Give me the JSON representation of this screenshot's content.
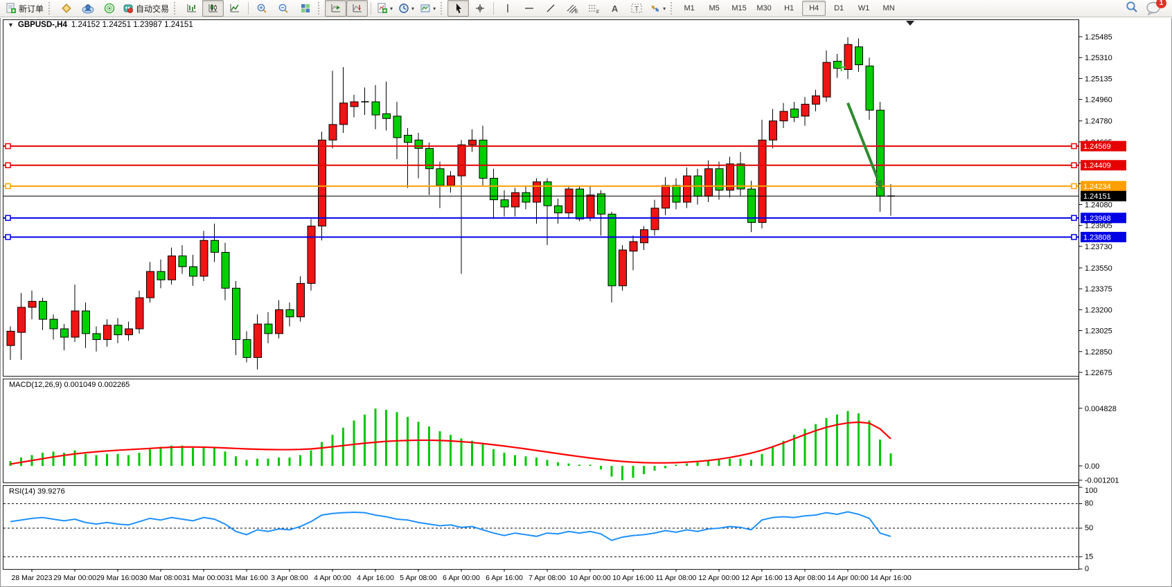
{
  "toolbar": {
    "new_order_label": "新订单",
    "auto_trading_label": "自动交易",
    "timeframes": [
      "M1",
      "M5",
      "M15",
      "M30",
      "H1",
      "H4",
      "D1",
      "W1",
      "MN"
    ],
    "active_timeframe": "H4",
    "notification_count": "1"
  },
  "chart_header": {
    "symbol_title": "GBPUSD-,H4",
    "ohlc_quote": "1.24152 1.24251 1.23987 1.24151",
    "collapse_glyph": "▼"
  },
  "indicators": {
    "macd_label": "MACD(12,26,9)",
    "macd_values": "0.001049 0.002265",
    "rsi_label": "RSI(14)",
    "rsi_value": "39.9276"
  },
  "chart_data": {
    "type": "candlestick",
    "symbol": "GBPUSD-",
    "timeframe": "H4",
    "current_price": 1.24151,
    "current_price_label": "1.24151",
    "price_axis_ticks": [
      "1.25485",
      "1.25310",
      "1.25135",
      "1.24960",
      "1.24780",
      "1.24605",
      "1.24430",
      "1.24255",
      "1.24080",
      "1.23905",
      "1.23730",
      "1.23550",
      "1.23375",
      "1.23200",
      "1.23025",
      "1.22850",
      "1.22675"
    ],
    "time_axis_labels": [
      "28 Mar 2023",
      "29 Mar 00:00",
      "29 Mar 16:00",
      "30 Mar 08:00",
      "31 Mar 00:00",
      "31 Mar 16:00",
      "3 Apr 08:00",
      "4 Apr 00:00",
      "4 Apr 16:00",
      "5 Apr 08:00",
      "6 Apr 00:00",
      "6 Apr 16:00",
      "7 Apr 08:00",
      "10 Apr 00:00",
      "10 Apr 16:00",
      "11 Apr 08:00",
      "12 Apr 00:00",
      "12 Apr 16:00",
      "13 Apr 08:00",
      "14 Apr 00:00",
      "14 Apr 16:00"
    ],
    "levels": [
      {
        "price": 1.24569,
        "label": "1.24569",
        "color": "#e60000",
        "role": "resistance"
      },
      {
        "price": 1.24409,
        "label": "1.24409",
        "color": "#e60000",
        "role": "resistance"
      },
      {
        "price": 1.24234,
        "label": "1.24234",
        "color": "#ffa000",
        "role": "pivot"
      },
      {
        "price": 1.23968,
        "label": "1.23968",
        "color": "#0000e6",
        "role": "support"
      },
      {
        "price": 1.23808,
        "label": "1.23808",
        "color": "#0000e6",
        "role": "support"
      }
    ],
    "candles_ohlc": [
      [
        1.229,
        1.2306,
        1.2278,
        1.2302
      ],
      [
        1.2301,
        1.2334,
        1.2278,
        1.2322
      ],
      [
        1.2322,
        1.2336,
        1.2312,
        1.2327
      ],
      [
        1.2327,
        1.233,
        1.2303,
        1.2312
      ],
      [
        1.2312,
        1.2316,
        1.2295,
        1.2304
      ],
      [
        1.2304,
        1.2308,
        1.2286,
        1.2297
      ],
      [
        1.2297,
        1.2341,
        1.2293,
        1.2319
      ],
      [
        1.2319,
        1.2326,
        1.2288,
        1.23
      ],
      [
        1.23,
        1.2306,
        1.2285,
        1.2295
      ],
      [
        1.2295,
        1.2312,
        1.2289,
        1.2307
      ],
      [
        1.2307,
        1.2313,
        1.2292,
        1.2299
      ],
      [
        1.2299,
        1.231,
        1.2294,
        1.2304
      ],
      [
        1.2304,
        1.2336,
        1.23,
        1.233
      ],
      [
        1.233,
        1.236,
        1.2326,
        1.2352
      ],
      [
        1.2352,
        1.2362,
        1.2338,
        1.2345
      ],
      [
        1.2345,
        1.2372,
        1.2341,
        1.2365
      ],
      [
        1.2365,
        1.2374,
        1.235,
        1.2356
      ],
      [
        1.2356,
        1.2366,
        1.234,
        1.2348
      ],
      [
        1.2348,
        1.2386,
        1.2344,
        1.2378
      ],
      [
        1.2378,
        1.2392,
        1.236,
        1.2368
      ],
      [
        1.2368,
        1.2376,
        1.2328,
        1.2338
      ],
      [
        1.2338,
        1.2344,
        1.2282,
        1.2295
      ],
      [
        1.2295,
        1.2302,
        1.2276,
        1.228
      ],
      [
        1.228,
        1.2316,
        1.227,
        1.2308
      ],
      [
        1.2308,
        1.2318,
        1.2292,
        1.23
      ],
      [
        1.23,
        1.2328,
        1.2296,
        1.232
      ],
      [
        1.232,
        1.2326,
        1.2306,
        1.2314
      ],
      [
        1.2314,
        1.2348,
        1.231,
        1.2342
      ],
      [
        1.2342,
        1.2396,
        1.2336,
        1.239
      ],
      [
        1.239,
        1.2469,
        1.2378,
        1.2462
      ],
      [
        1.2462,
        1.252,
        1.2455,
        1.2475
      ],
      [
        1.2475,
        1.2523,
        1.2468,
        1.2493
      ],
      [
        1.249,
        1.25,
        1.2481,
        1.2494
      ],
      [
        1.2493,
        1.2506,
        1.2483,
        1.2494
      ],
      [
        1.2494,
        1.2508,
        1.2471,
        1.2483
      ],
      [
        1.2484,
        1.2511,
        1.247,
        1.248
      ],
      [
        1.2482,
        1.2494,
        1.2446,
        1.2464
      ],
      [
        1.2466,
        1.2472,
        1.2422,
        1.246
      ],
      [
        1.2462,
        1.2468,
        1.243,
        1.2455
      ],
      [
        1.2455,
        1.246,
        1.2416,
        1.2438
      ],
      [
        1.2438,
        1.2444,
        1.2405,
        1.2424
      ],
      [
        1.2424,
        1.2436,
        1.2418,
        1.2432
      ],
      [
        1.2432,
        1.2462,
        1.235,
        1.2458
      ],
      [
        1.2458,
        1.2471,
        1.2452,
        1.2462
      ],
      [
        1.2462,
        1.2474,
        1.2424,
        1.243
      ],
      [
        1.243,
        1.2438,
        1.2396,
        1.2412
      ],
      [
        1.2412,
        1.242,
        1.2398,
        1.2406
      ],
      [
        1.2406,
        1.2422,
        1.2398,
        1.2418
      ],
      [
        1.2418,
        1.2424,
        1.2404,
        1.241
      ],
      [
        1.241,
        1.243,
        1.2392,
        1.2427
      ],
      [
        1.2427,
        1.243,
        1.2374,
        1.2407
      ],
      [
        1.2407,
        1.2413,
        1.2392,
        1.2401
      ],
      [
        1.2401,
        1.2424,
        1.2396,
        1.2421
      ],
      [
        1.2421,
        1.2424,
        1.2394,
        1.2396
      ],
      [
        1.2397,
        1.2424,
        1.2394,
        1.2416
      ],
      [
        1.2417,
        1.242,
        1.2382,
        1.24
      ],
      [
        1.24,
        1.2402,
        1.2326,
        1.234
      ],
      [
        1.234,
        1.2374,
        1.2336,
        1.237
      ],
      [
        1.2369,
        1.2382,
        1.2353,
        1.2377
      ],
      [
        1.2376,
        1.239,
        1.237,
        1.2387
      ],
      [
        1.2387,
        1.2412,
        1.2382,
        1.2405
      ],
      [
        1.2405,
        1.2431,
        1.2399,
        1.2424
      ],
      [
        1.2424,
        1.243,
        1.2404,
        1.241
      ],
      [
        1.241,
        1.2439,
        1.2405,
        1.2432
      ],
      [
        1.2432,
        1.2438,
        1.2408,
        1.2415
      ],
      [
        1.2415,
        1.2445,
        1.241,
        1.2438
      ],
      [
        1.2438,
        1.2444,
        1.2412,
        1.242
      ],
      [
        1.242,
        1.2448,
        1.2414,
        1.2442
      ],
      [
        1.2442,
        1.2452,
        1.2415,
        1.2421
      ],
      [
        1.2421,
        1.2428,
        1.2385,
        1.2393
      ],
      [
        1.2393,
        1.2479,
        1.2388,
        1.2462
      ],
      [
        1.2462,
        1.2488,
        1.2455,
        1.2478
      ],
      [
        1.2478,
        1.2493,
        1.2472,
        1.2486
      ],
      [
        1.2488,
        1.2494,
        1.2477,
        1.2481
      ],
      [
        1.2482,
        1.2498,
        1.2474,
        1.2492
      ],
      [
        1.2492,
        1.2504,
        1.2486,
        1.2499
      ],
      [
        1.2498,
        1.2537,
        1.2494,
        1.2527
      ],
      [
        1.2528,
        1.2534,
        1.2514,
        1.2522
      ],
      [
        1.2521,
        1.2548,
        1.2513,
        1.2542
      ],
      [
        1.254,
        1.2547,
        1.2519,
        1.2525
      ],
      [
        1.2524,
        1.2531,
        1.2479,
        1.2487
      ],
      [
        1.2487,
        1.2494,
        1.2402,
        1.2415
      ],
      [
        1.24152,
        1.24251,
        1.23987,
        1.24151
      ]
    ],
    "macd": {
      "params": "12,26,9",
      "current": 0.001049,
      "signal_current": 0.002265,
      "axis_labels": [
        "0.004828",
        "0.00",
        "-0.001201"
      ],
      "histogram": [
        0.0004,
        0.0007,
        0.0009,
        0.0011,
        0.0012,
        0.0011,
        0.0013,
        0.001,
        0.0009,
        0.001,
        0.001,
        0.0009,
        0.0011,
        0.0014,
        0.0016,
        0.0017,
        0.0017,
        0.0015,
        0.0016,
        0.0015,
        0.0012,
        0.0008,
        0.0005,
        0.0006,
        0.0006,
        0.0007,
        0.0007,
        0.0009,
        0.0013,
        0.002,
        0.0026,
        0.0032,
        0.0038,
        0.0043,
        0.0048,
        0.0047,
        0.0045,
        0.0041,
        0.0037,
        0.0033,
        0.0029,
        0.0026,
        0.0023,
        0.0021,
        0.0018,
        0.0014,
        0.0011,
        0.0009,
        0.0008,
        0.0007,
        0.0005,
        0.0003,
        0.0002,
        0.0001,
        0.0001,
        -0.0003,
        -0.0009,
        -0.0012,
        -0.001,
        -0.0007,
        -0.0004,
        -0.0002,
        0.0001,
        0.0002,
        0.0003,
        0.0004,
        0.0005,
        0.0006,
        0.0006,
        0.0005,
        0.001,
        0.0016,
        0.0021,
        0.0026,
        0.0031,
        0.0035,
        0.004,
        0.0043,
        0.0046,
        0.0044,
        0.0038,
        0.0022,
        0.001049
      ],
      "signal": [
        0.00015,
        0.0003,
        0.00045,
        0.0006,
        0.00075,
        0.00088,
        0.001,
        0.0011,
        0.00118,
        0.00125,
        0.00131,
        0.00136,
        0.00141,
        0.00146,
        0.00152,
        0.00156,
        0.00158,
        0.00158,
        0.00157,
        0.00154,
        0.0015,
        0.00146,
        0.00142,
        0.00139,
        0.00137,
        0.00136,
        0.00136,
        0.00138,
        0.00142,
        0.0015,
        0.0016,
        0.0017,
        0.0018,
        0.0019,
        0.00198,
        0.00205,
        0.0021,
        0.00213,
        0.00215,
        0.00215,
        0.00213,
        0.00209,
        0.00203,
        0.00196,
        0.00187,
        0.00177,
        0.00166,
        0.00154,
        0.00142,
        0.00129,
        0.00116,
        0.00103,
        0.0009,
        0.00078,
        0.00066,
        0.00055,
        0.00045,
        0.00037,
        0.00031,
        0.00027,
        0.00025,
        0.00025,
        0.00027,
        0.00031,
        0.00037,
        0.00045,
        0.00056,
        0.0007,
        0.00087,
        0.00107,
        0.00131,
        0.0016,
        0.00192,
        0.00227,
        0.00262,
        0.00295,
        0.00323,
        0.00345,
        0.0036,
        0.00366,
        0.00358,
        0.0031,
        0.002265
      ]
    },
    "rsi": {
      "period": 14,
      "current": 39.9276,
      "levels": [
        80,
        50,
        15
      ],
      "axis_labels": [
        "100",
        "80",
        "50",
        "15",
        "0"
      ],
      "values": [
        58,
        60,
        62,
        63,
        61,
        59,
        61,
        57,
        55,
        57,
        55,
        54,
        58,
        62,
        60,
        63,
        61,
        59,
        63,
        61,
        55,
        46,
        42,
        48,
        46,
        49,
        48,
        52,
        58,
        66,
        68,
        69,
        69.5,
        69,
        66,
        64,
        61,
        60,
        57,
        55,
        53,
        54,
        51,
        52,
        48,
        44,
        41,
        44,
        42,
        40,
        44,
        43,
        46,
        44,
        46,
        43,
        35,
        39,
        41,
        42,
        44,
        47,
        45,
        48,
        46,
        49,
        50,
        52,
        51,
        48,
        60,
        63,
        64,
        63,
        65,
        66,
        69,
        67,
        70,
        67,
        62,
        44,
        39.9
      ]
    },
    "annotations": {
      "sell_arrow": {
        "from_idx": 78,
        "from_price": 1.2493,
        "to_idx": 81,
        "to_price": 1.2424,
        "color": "#2e8b2e"
      },
      "plus_marker": {
        "idx": 77.4,
        "price": 1.2523,
        "color": "#32cd32"
      }
    },
    "colors": {
      "bull": "#f01414",
      "bear": "#00d000",
      "outline": "#000000",
      "macd_hist": "#00c800",
      "macd_signal": "#ff0000",
      "rsi_line": "#1e90ff",
      "bid_line": "#000000",
      "axis_text": "#000000"
    },
    "ylim": [
      1.22675,
      1.25485
    ],
    "grid": false,
    "legend_position": "top-left"
  }
}
